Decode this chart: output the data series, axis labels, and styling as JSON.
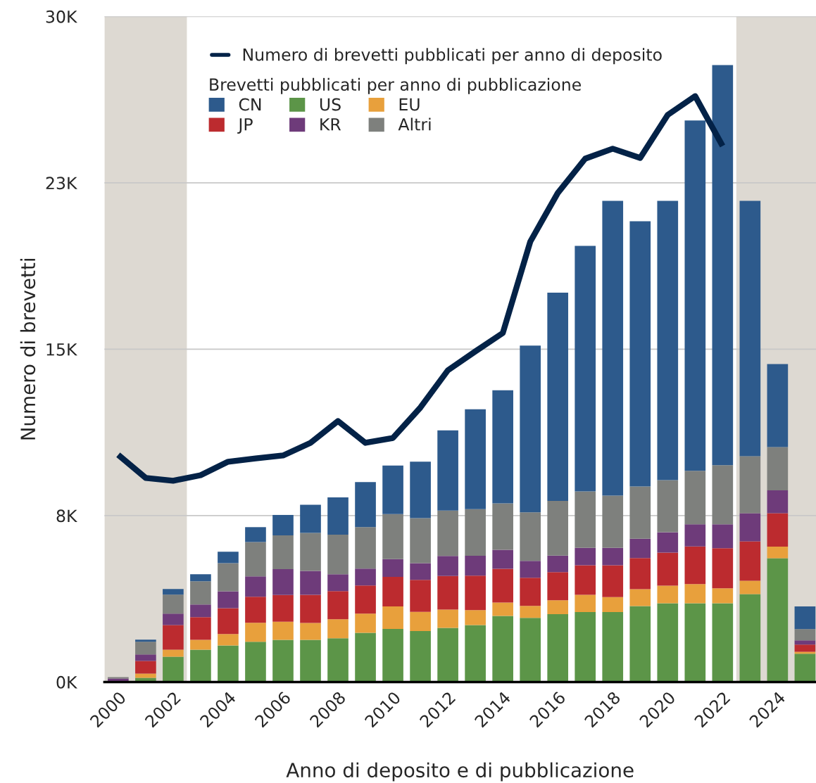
{
  "chart_data": {
    "type": "bar",
    "stacked": true,
    "xlabel": "Anno di deposito e di pubblicazione",
    "ylabel": "Numero di brevetti",
    "legend_title": "Brevetti pubblicati per anno di pubblicazione",
    "x": [
      2000,
      2001,
      2002,
      2003,
      2004,
      2005,
      2006,
      2007,
      2008,
      2009,
      2010,
      2011,
      2012,
      2013,
      2014,
      2015,
      2016,
      2017,
      2018,
      2019,
      2020,
      2021,
      2022,
      2023,
      2024,
      2025
    ],
    "xlim": [
      1999.5,
      2025.4
    ],
    "xticks": [
      2000,
      2002,
      2004,
      2006,
      2008,
      2010,
      2012,
      2014,
      2016,
      2018,
      2020,
      2022,
      2024
    ],
    "ylim": [
      0,
      30000
    ],
    "yticks": [
      {
        "value": 0,
        "label": "0K"
      },
      {
        "value": 7500,
        "label": "8K"
      },
      {
        "value": 15000,
        "label": "15K"
      },
      {
        "value": 22500,
        "label": "23K"
      },
      {
        "value": 30000,
        "label": "30K"
      }
    ],
    "grid": "y",
    "legend": "top",
    "bands": [
      {
        "axis": "x",
        "from": 1999.5,
        "to": 2002.5,
        "color": "#ddd9d2"
      },
      {
        "axis": "x",
        "from": 2022.5,
        "to": 2025.4,
        "color": "#ddd9d2"
      }
    ],
    "series": [
      {
        "name": "US",
        "color": "#5c9548",
        "values": [
          0,
          190,
          1140,
          1460,
          1650,
          1810,
          1900,
          1900,
          1970,
          2220,
          2390,
          2300,
          2440,
          2570,
          2980,
          2890,
          3060,
          3150,
          3150,
          3420,
          3550,
          3550,
          3550,
          3960,
          5580,
          1270
        ]
      },
      {
        "name": "EU",
        "color": "#e8a03c",
        "values": [
          0,
          190,
          320,
          440,
          510,
          860,
          820,
          760,
          860,
          860,
          1020,
          860,
          820,
          670,
          600,
          540,
          620,
          780,
          680,
          760,
          790,
          860,
          670,
          600,
          520,
          95
        ]
      },
      {
        "name": "JP",
        "color": "#bc2b2f",
        "values": [
          0,
          570,
          1110,
          1020,
          1170,
          1170,
          1200,
          1270,
          1270,
          1270,
          1330,
          1440,
          1520,
          1550,
          1520,
          1270,
          1270,
          1330,
          1430,
          1410,
          1490,
          1700,
          1810,
          1780,
          1510,
          320
        ]
      },
      {
        "name": "KR",
        "color": "#6e3b7a",
        "values": [
          160,
          290,
          510,
          570,
          760,
          920,
          1170,
          1080,
          760,
          760,
          800,
          760,
          900,
          900,
          860,
          760,
          750,
          790,
          790,
          870,
          920,
          1000,
          1080,
          1270,
          1030,
          190
        ]
      },
      {
        "name": "Altri",
        "color": "#7e807d",
        "values": [
          60,
          570,
          860,
          1050,
          1270,
          1550,
          1520,
          1710,
          1780,
          1870,
          2030,
          2030,
          2050,
          2100,
          2090,
          2190,
          2460,
          2540,
          2350,
          2350,
          2350,
          2410,
          2660,
          2570,
          1950,
          510
        ]
      },
      {
        "name": "CN",
        "color": "#2d5a8c",
        "values": [
          0,
          100,
          250,
          320,
          510,
          670,
          920,
          1270,
          1680,
          2030,
          2190,
          2540,
          3610,
          4500,
          5100,
          7510,
          9390,
          11070,
          13290,
          11960,
          12590,
          15790,
          18040,
          11510,
          3740,
          1020
        ]
      },
      {
        "name": "Numero di brevetti pubblicati per anno di deposito",
        "type": "line",
        "color": "#032247",
        "x": [
          2000,
          2001,
          2002,
          2003,
          2004,
          2005,
          2006,
          2007,
          2008,
          2009,
          2010,
          2011,
          2012,
          2013,
          2014,
          2015,
          2016,
          2017,
          2018,
          2019,
          2020,
          2021,
          2022
        ],
        "values": [
          10240,
          9200,
          9070,
          9320,
          9930,
          10080,
          10210,
          10780,
          11760,
          10780,
          11000,
          12370,
          14050,
          14900,
          15730,
          19850,
          22040,
          23590,
          24040,
          23620,
          25560,
          26410,
          24160
        ]
      }
    ]
  }
}
